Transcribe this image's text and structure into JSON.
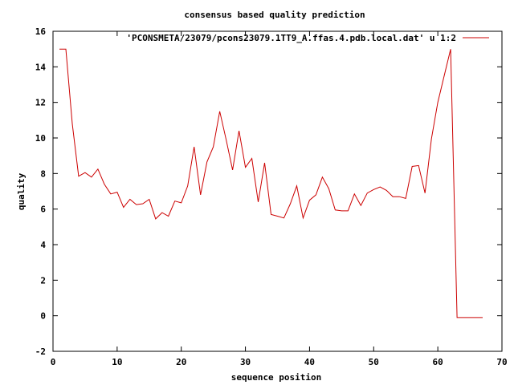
{
  "chart_data": {
    "type": "line",
    "title": "consensus based quality prediction",
    "xlabel": "sequence position",
    "ylabel": "quality",
    "xlim": [
      0,
      70
    ],
    "ylim": [
      -2,
      16
    ],
    "xticks": [
      0,
      10,
      20,
      30,
      40,
      50,
      60,
      70
    ],
    "yticks": [
      -2,
      0,
      2,
      4,
      6,
      8,
      10,
      12,
      14,
      16
    ],
    "grid": false,
    "legend_position": "top-right",
    "series": [
      {
        "name": "'PCONSMETA/23079/pcons23079.1TT9_A.ffas.4.pdb.local.dat' u 1:2",
        "color": "#cc0000",
        "x": [
          1,
          2,
          3,
          4,
          5,
          6,
          7,
          8,
          9,
          10,
          11,
          12,
          13,
          14,
          15,
          16,
          17,
          18,
          19,
          20,
          21,
          22,
          23,
          24,
          25,
          26,
          27,
          28,
          29,
          30,
          31,
          32,
          33,
          34,
          35,
          36,
          37,
          38,
          39,
          40,
          41,
          42,
          43,
          44,
          45,
          46,
          47,
          48,
          49,
          50,
          51,
          52,
          53,
          54,
          55,
          56,
          57,
          58,
          59,
          60,
          61,
          62,
          63,
          64,
          65,
          66,
          67
        ],
        "y": [
          15,
          15,
          10.8,
          7.85,
          8.05,
          7.8,
          8.25,
          7.4,
          6.85,
          6.95,
          6.1,
          6.55,
          6.25,
          6.3,
          6.55,
          5.45,
          5.8,
          5.6,
          6.45,
          6.35,
          7.3,
          9.5,
          6.8,
          8.65,
          9.5,
          11.5,
          9.9,
          8.2,
          10.4,
          8.35,
          8.85,
          6.4,
          8.6,
          5.7,
          5.6,
          5.5,
          6.3,
          7.3,
          5.5,
          6.5,
          6.8,
          7.8,
          7.15,
          5.95,
          5.9,
          5.9,
          6.85,
          6.2,
          6.9,
          7.1,
          7.25,
          7.05,
          6.7,
          6.7,
          6.6,
          8.4,
          8.45,
          6.9,
          9.95,
          12,
          13.5,
          15,
          -0.1,
          -0.1,
          -0.1,
          -0.1,
          -0.1
        ]
      }
    ]
  }
}
